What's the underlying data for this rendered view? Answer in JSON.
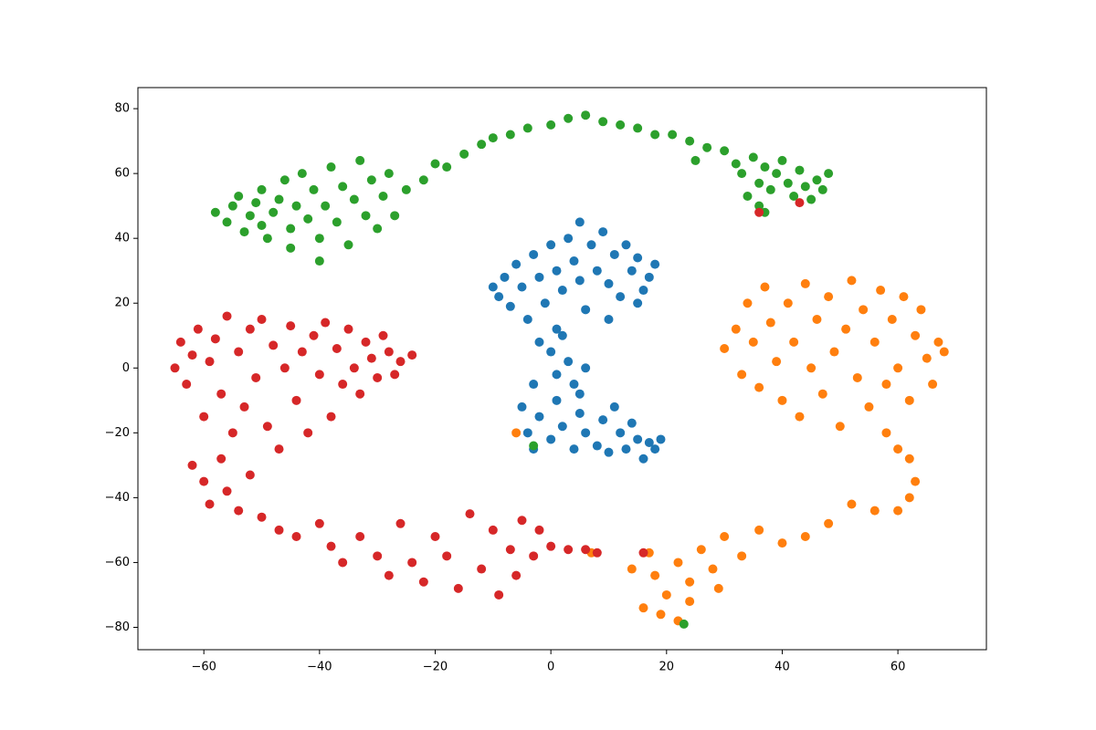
{
  "chart_data": {
    "type": "scatter",
    "xlim": [
      -71.4,
      75.3
    ],
    "ylim": [
      -86.9,
      86.5
    ],
    "xticks": [
      {
        "value": -60,
        "label": "−60"
      },
      {
        "value": -40,
        "label": "−40"
      },
      {
        "value": -20,
        "label": "−20"
      },
      0,
      20,
      40,
      60
    ],
    "yticks": [
      {
        "value": -80,
        "label": "−80"
      },
      {
        "value": -60,
        "label": "−60"
      },
      {
        "value": -40,
        "label": "−40"
      },
      {
        "value": -20,
        "label": "−20"
      },
      0,
      20,
      40,
      60,
      80
    ],
    "series": [
      {
        "color": "#1f77b4",
        "x": [
          -10,
          -9,
          -8,
          -7,
          -6,
          -5,
          -4,
          -3,
          -2,
          -1,
          0,
          1,
          1,
          2,
          3,
          4,
          5,
          5,
          6,
          7,
          8,
          9,
          10,
          11,
          12,
          13,
          14,
          15,
          16,
          17,
          18,
          15,
          10,
          -2,
          0,
          2,
          3,
          1,
          4,
          6,
          -3,
          5,
          -5,
          -4,
          -3,
          -2,
          0,
          1,
          2,
          4,
          5,
          6,
          8,
          9,
          10,
          11,
          12,
          13,
          14,
          15,
          16,
          17,
          18,
          19
        ],
        "y": [
          25,
          22,
          28,
          19,
          32,
          25,
          15,
          35,
          28,
          20,
          38,
          30,
          12,
          24,
          40,
          33,
          27,
          45,
          18,
          38,
          30,
          42,
          26,
          35,
          22,
          38,
          30,
          34,
          24,
          28,
          32,
          20,
          15,
          8,
          5,
          10,
          2,
          -2,
          -5,
          0,
          -5,
          -8,
          -12,
          -20,
          -25,
          -15,
          -22,
          -10,
          -18,
          -25,
          -14,
          -20,
          -24,
          -16,
          -26,
          -12,
          -20,
          -25,
          -17,
          -22,
          -28,
          -23,
          -25,
          -22
        ]
      },
      {
        "color": "#ff7f0e",
        "x": [
          30,
          32,
          33,
          34,
          35,
          36,
          37,
          38,
          39,
          40,
          41,
          42,
          43,
          44,
          45,
          46,
          47,
          48,
          49,
          50,
          51,
          52,
          53,
          54,
          55,
          56,
          57,
          58,
          59,
          60,
          61,
          62,
          63,
          64,
          65,
          66,
          67,
          68,
          58,
          60,
          62,
          63,
          62,
          60,
          56,
          52,
          48,
          44,
          40,
          36,
          33,
          30,
          28,
          26,
          24,
          22,
          20,
          18,
          16,
          19,
          22,
          14,
          17,
          24,
          29,
          -6,
          7
        ],
        "y": [
          6,
          12,
          -2,
          20,
          8,
          -6,
          25,
          14,
          2,
          -10,
          20,
          8,
          -15,
          26,
          0,
          15,
          -8,
          22,
          5,
          -18,
          12,
          27,
          -3,
          18,
          -12,
          8,
          24,
          -5,
          15,
          0,
          22,
          -10,
          10,
          18,
          3,
          -5,
          8,
          5,
          -20,
          -25,
          -28,
          -35,
          -40,
          -44,
          -44,
          -42,
          -48,
          -52,
          -54,
          -50,
          -58,
          -52,
          -62,
          -56,
          -66,
          -60,
          -70,
          -64,
          -74,
          -76,
          -78,
          -62,
          -57,
          -72,
          -68,
          -20,
          -57
        ]
      },
      {
        "color": "#2ca02c",
        "x": [
          -58,
          -56,
          -55,
          -54,
          -53,
          -52,
          -51,
          -50,
          -50,
          -49,
          -48,
          -47,
          -46,
          -45,
          -45,
          -44,
          -43,
          -42,
          -41,
          -40,
          -40,
          -39,
          -38,
          -37,
          -36,
          -35,
          -34,
          -33,
          -32,
          -31,
          -30,
          -29,
          -28,
          -27,
          -25,
          -22,
          -20,
          -18,
          -15,
          -12,
          -10,
          -7,
          -4,
          0,
          3,
          6,
          9,
          12,
          15,
          18,
          21,
          24,
          27,
          25,
          30,
          32,
          33,
          35,
          36,
          37,
          38,
          39,
          40,
          41,
          42,
          43,
          44,
          45,
          46,
          47,
          48,
          34,
          36,
          23,
          -3,
          37
        ],
        "y": [
          48,
          45,
          50,
          53,
          42,
          47,
          51,
          44,
          55,
          40,
          48,
          52,
          58,
          43,
          37,
          50,
          60,
          46,
          55,
          40,
          33,
          50,
          62,
          45,
          56,
          38,
          52,
          64,
          47,
          58,
          43,
          53,
          60,
          47,
          55,
          58,
          63,
          62,
          66,
          69,
          71,
          72,
          74,
          75,
          77,
          78,
          76,
          75,
          74,
          72,
          72,
          70,
          68,
          64,
          67,
          63,
          60,
          65,
          57,
          62,
          55,
          60,
          64,
          57,
          53,
          61,
          56,
          52,
          58,
          55,
          60,
          53,
          50,
          -79,
          -24,
          48
        ]
      },
      {
        "color": "#d62728",
        "x": [
          -65,
          -64,
          -63,
          -62,
          -61,
          -60,
          -59,
          -58,
          -57,
          -56,
          -55,
          -54,
          -53,
          -52,
          -51,
          -50,
          -49,
          -48,
          -47,
          -46,
          -45,
          -44,
          -43,
          -42,
          -41,
          -40,
          -39,
          -38,
          -37,
          -36,
          -35,
          -34,
          -33,
          -32,
          -31,
          -30,
          -29,
          -28,
          -27,
          -26,
          -24,
          -62,
          -60,
          -59,
          -57,
          -56,
          -54,
          -52,
          -50,
          -47,
          -44,
          -40,
          -38,
          -36,
          -33,
          -30,
          -28,
          -26,
          -24,
          -22,
          -20,
          -18,
          -16,
          -14,
          -12,
          -10,
          -9,
          -7,
          -6,
          -5,
          -3,
          -2,
          0,
          3,
          6,
          8,
          36,
          43,
          16
        ],
        "y": [
          0,
          8,
          -5,
          4,
          12,
          -15,
          2,
          9,
          -8,
          16,
          -20,
          5,
          -12,
          12,
          -3,
          15,
          -18,
          7,
          -25,
          0,
          13,
          -10,
          5,
          -20,
          10,
          -2,
          14,
          -15,
          6,
          -5,
          12,
          0,
          -8,
          8,
          3,
          -3,
          10,
          5,
          -2,
          2,
          4,
          -30,
          -35,
          -42,
          -28,
          -38,
          -44,
          -33,
          -46,
          -50,
          -52,
          -48,
          -55,
          -60,
          -52,
          -58,
          -64,
          -48,
          -60,
          -66,
          -52,
          -58,
          -68,
          -45,
          -62,
          -50,
          -70,
          -56,
          -64,
          -47,
          -58,
          -50,
          -55,
          -56,
          -56,
          -57,
          48,
          51,
          -57
        ]
      }
    ]
  }
}
